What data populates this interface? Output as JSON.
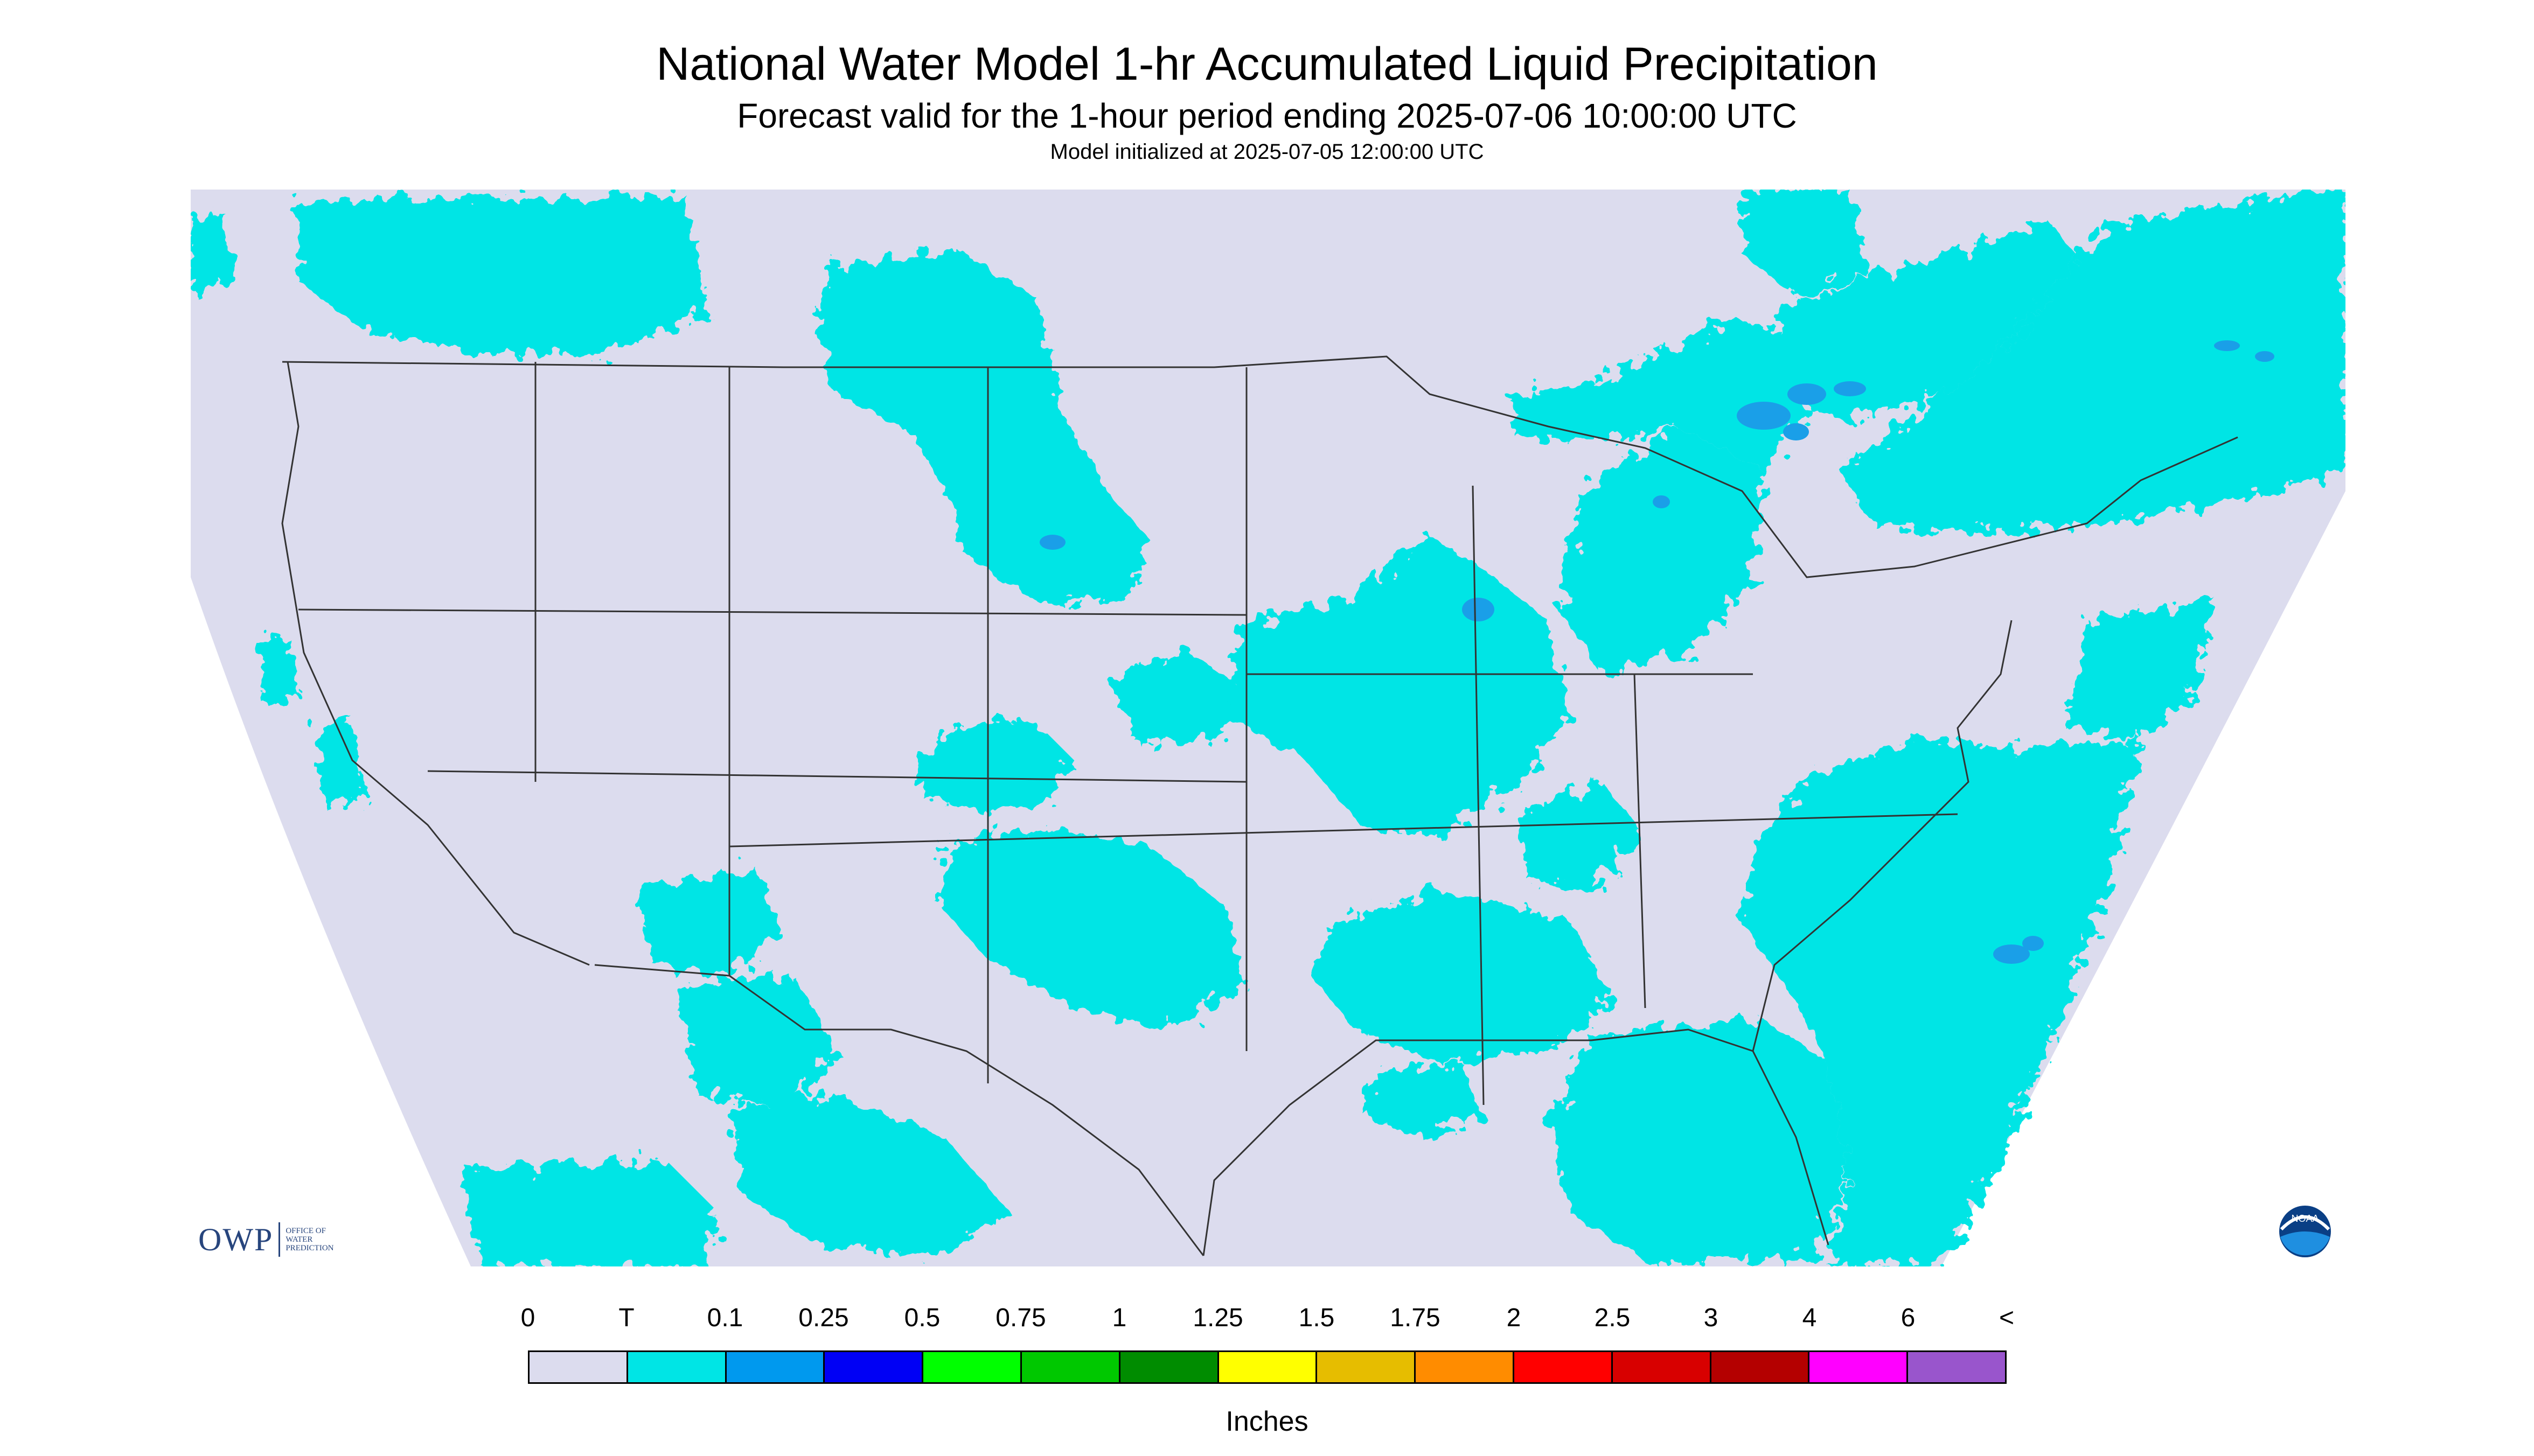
{
  "header": {
    "title": "National Water Model 1-hr Accumulated Liquid Precipitation",
    "subtitle": "Forecast valid for the 1-hour period ending 2025-07-06 10:00:00 UTC",
    "init": "Model initialized at 2025-07-05 12:00:00 UTC"
  },
  "colors": {
    "background_nodata": "#ffffff",
    "map_zero": "#dcdcee",
    "precip_trace": "#00e5e5",
    "precip_light": "#1a9fe8",
    "boundary": "#333333"
  },
  "legend": {
    "labels": [
      "0",
      "T",
      "0.1",
      "0.25",
      "0.5",
      "0.75",
      "1",
      "1.25",
      "1.5",
      "1.75",
      "2",
      "2.5",
      "3",
      "4",
      "6",
      "<"
    ],
    "colors": [
      "#dcdcee",
      "#00e5e5",
      "#0099ee",
      "#0000f5",
      "#00ff00",
      "#00c800",
      "#008c00",
      "#ffff00",
      "#e6bd00",
      "#ff8c00",
      "#ff0000",
      "#d80000",
      "#b40000",
      "#ff00ff",
      "#9955cc"
    ],
    "units": "Inches"
  },
  "logos": {
    "owp_mark": "OWP",
    "owp_text": [
      "OFFICE OF",
      "WATER",
      "PREDICTION"
    ],
    "noaa_text": "NOAA"
  }
}
